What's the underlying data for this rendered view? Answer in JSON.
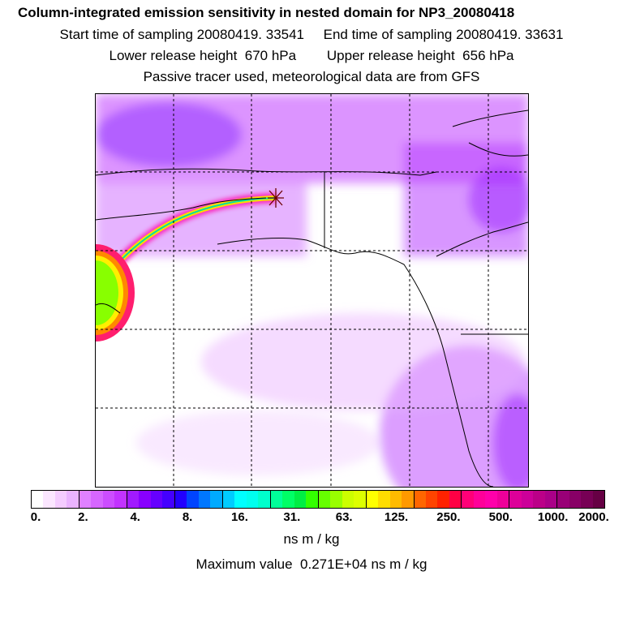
{
  "header": {
    "title": "Column-integrated emission sensitivity in nested domain for NP3_20080418",
    "line2": "Start time of sampling 20080419. 33541     End time of sampling 20080419. 33631",
    "line3": "Lower release height  670 hPa        Upper release height  656 hPa",
    "line4": "Passive tracer used, meteorological data are from GFS"
  },
  "colorbar": {
    "tick_labels": [
      "0.",
      "2.",
      "4.",
      "8.",
      "16.",
      "31.",
      "63.",
      "125.",
      "250.",
      "500.",
      "1000.",
      "2000."
    ],
    "colors": [
      "#ffffff",
      "#fbe6ff",
      "#f4ccff",
      "#eab3ff",
      "#df80ff",
      "#d666ff",
      "#cc4dff",
      "#c233ff",
      "#a11aff",
      "#8800ff",
      "#6600ff",
      "#4400ff",
      "#2200ff",
      "#0044ff",
      "#0077ff",
      "#00aaff",
      "#00ccff",
      "#00ffff",
      "#00ffee",
      "#00ffcc",
      "#00ff99",
      "#00ff66",
      "#00ee44",
      "#33ff00",
      "#66ff00",
      "#99ff00",
      "#ccff00",
      "#ddff00",
      "#ffff00",
      "#ffdd00",
      "#ffbb00",
      "#ff9900",
      "#ff6600",
      "#ff4400",
      "#ff2200",
      "#ff0044",
      "#ff0077",
      "#ff0099",
      "#ff00aa",
      "#ee0099",
      "#dd0099",
      "#cc0099",
      "#bb0088",
      "#aa0088",
      "#990077",
      "#880066",
      "#770055",
      "#660044"
    ],
    "units": "ns m / kg"
  },
  "footer": {
    "max_value": "Maximum value  0.271E+04 ns m / kg"
  },
  "map": {
    "receptor_marker": "asterisk-marker",
    "background_color": "#ffffff",
    "plume_color": "#cc44ff"
  }
}
